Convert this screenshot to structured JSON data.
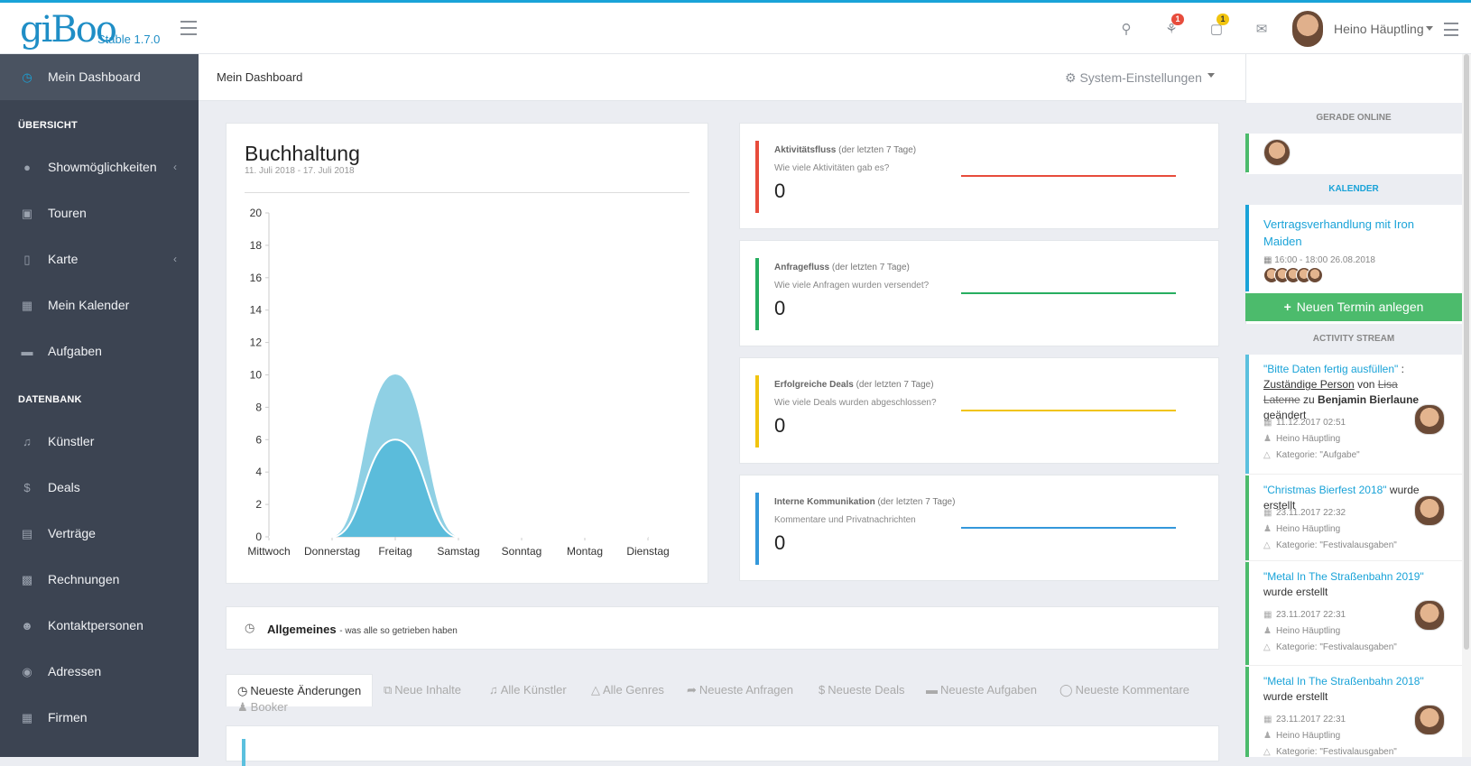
{
  "header": {
    "logo": "giBoo",
    "version": "Stable 1.7.0",
    "notifications_count": "1",
    "tasks_count": "1",
    "user_name": "Heino Häuptling",
    "icons": [
      "menu-icon",
      "search-icon",
      "bell-icon",
      "inbox-icon",
      "envelope-icon",
      "user-avatar",
      "menu-icon"
    ]
  },
  "sidebar": {
    "dashboard": "Mein Dashboard",
    "section_overview": "ÜBERSICHT",
    "items_overview": [
      {
        "label": "Showmöglichkeiten",
        "icon": "microphone-icon"
      },
      {
        "label": "Touren",
        "icon": "bus-icon"
      },
      {
        "label": "Karte",
        "icon": "map-icon"
      },
      {
        "label": "Mein Kalender",
        "icon": "calendar-icon"
      },
      {
        "label": "Aufgaben",
        "icon": "folder-icon"
      }
    ],
    "section_db": "DATENBANK",
    "items_db": [
      {
        "label": "Künstler",
        "icon": "music-icon"
      },
      {
        "label": "Deals",
        "icon": "dollar-icon"
      },
      {
        "label": "Verträge",
        "icon": "file-icon"
      },
      {
        "label": "Rechnungen",
        "icon": "calculator-icon"
      },
      {
        "label": "Kontaktpersonen",
        "icon": "users-icon"
      },
      {
        "label": "Adressen",
        "icon": "marker-icon"
      },
      {
        "label": "Firmen",
        "icon": "building-icon"
      }
    ]
  },
  "breadcrumb": {
    "current": "Mein Dashboard",
    "settings": "System-Einstellungen"
  },
  "buchhaltung": {
    "title": "Buchhaltung",
    "range": "11. Juli 2018 - 17. Juli 2018"
  },
  "chart_data": {
    "type": "area",
    "categories": [
      "Mittwoch",
      "Donnerstag",
      "Freitag",
      "Samstag",
      "Sonntag",
      "Montag",
      "Dienstag"
    ],
    "series": [
      {
        "values": [
          0,
          0,
          10,
          0,
          0,
          0,
          0
        ],
        "color": "#8fd0e4"
      },
      {
        "values": [
          0,
          0,
          6,
          0,
          0,
          0,
          0
        ],
        "color": "#5bbcdb"
      }
    ],
    "ylim": [
      0,
      20
    ],
    "yticks": [
      0,
      2,
      4,
      6,
      8,
      10,
      12,
      14,
      16,
      18,
      20
    ],
    "grid": false
  },
  "stats": [
    {
      "title": "Aktivitätsfluss",
      "period": "(der letzten 7 Tage)",
      "question": "Wie viele Aktivitäten gab es?",
      "value": "0",
      "color": "#e74c3c"
    },
    {
      "title": "Anfragefluss",
      "period": "(der letzten 7 Tage)",
      "question": "Wie viele Anfragen wurden versendet?",
      "value": "0",
      "color": "#27ae60"
    },
    {
      "title": "Erfolgreiche Deals",
      "period": "(der letzten 7 Tage)",
      "question": "Wie viele Deals wurden abgeschlossen?",
      "value": "0",
      "color": "#f1c40f"
    },
    {
      "title": "Interne Kommunikation",
      "period": "(der letzten 7 Tage)",
      "question": "Kommentare und Privatnachrichten",
      "value": "0",
      "color": "#3498db"
    }
  ],
  "allgemeines": {
    "title": "Allgemeines",
    "subtitle": "- was alle so getrieben haben"
  },
  "tabs": [
    {
      "label": "Neueste Änderungen",
      "icon": "clock-icon"
    },
    {
      "label": "Neue Inhalte",
      "icon": "copy-icon"
    },
    {
      "label": "Alle Künstler",
      "icon": "music-icon"
    },
    {
      "label": "Alle Genres",
      "icon": "flask-icon"
    },
    {
      "label": "Neueste Anfragen",
      "icon": "share-icon"
    },
    {
      "label": "Neueste Deals",
      "icon": "dollar-icon"
    },
    {
      "label": "Neueste Aufgaben",
      "icon": "folder-icon"
    },
    {
      "label": "Neueste Kommentare",
      "icon": "comment-icon"
    },
    {
      "label": "Booker",
      "icon": "user-icon"
    }
  ],
  "rightpanel": {
    "online_head": "GERADE ONLINE",
    "calendar_head": "KALENDER",
    "event_title": "Vertragsverhandlung mit Iron Maiden",
    "event_time": "16:00 - 18:00 26.08.2018",
    "new_button": "Neuen Termin anlegen",
    "stream_head": "ACTIVITY STREAM",
    "activities": [
      {
        "link": "\"Bitte Daten fertig ausfüllen\"",
        "colon": " :",
        "field": "Zuständige Person",
        "von": " von ",
        "old": "Lisa Laterne",
        "zu": " zu ",
        "new": "Benjamin Bierlaune",
        "verb": " geändert",
        "date": "11.12.2017 02:51",
        "user": "Heino Häuptling",
        "category": "Kategorie: \"Aufgabe\""
      },
      {
        "link": "\"Christmas Bierfest 2018\"",
        "verb": " wurde erstellt",
        "date": "23.11.2017 22:32",
        "user": "Heino Häuptling",
        "category": "Kategorie: \"Festivalausgaben\""
      },
      {
        "link": "\"Metal In The Straßenbahn 2019\"",
        "verb": " wurde erstellt",
        "date": "23.11.2017 22:31",
        "user": "Heino Häuptling",
        "category": "Kategorie: \"Festivalausgaben\""
      },
      {
        "link": "\"Metal In The Straßenbahn 2018\"",
        "verb": " wurde erstellt",
        "date": "23.11.2017 22:31",
        "user": "Heino Häuptling",
        "category": "Kategorie: \"Festivalausgaben\""
      }
    ]
  }
}
